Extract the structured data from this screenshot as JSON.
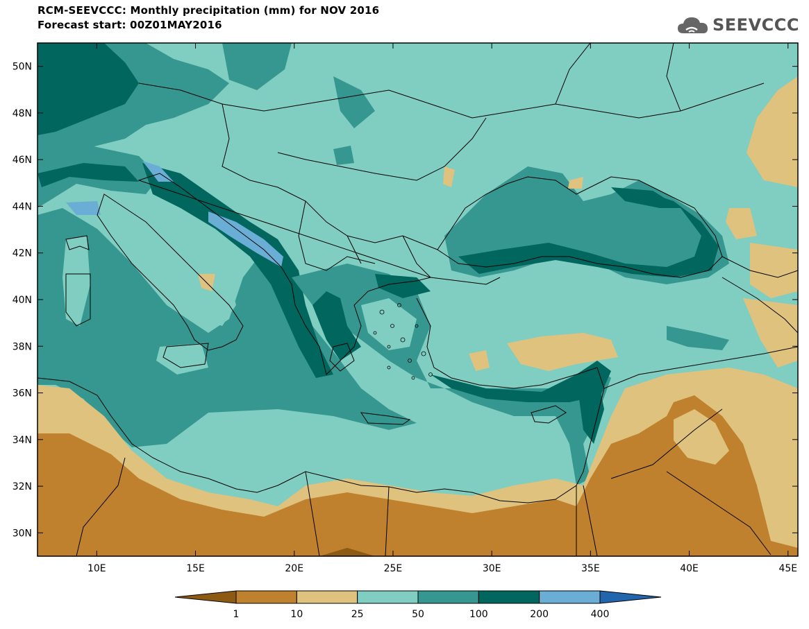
{
  "header": {
    "title_line1": "RCM-SEEVCCC: Monthly precipitation (mm) for NOV 2016",
    "title_line2": "Forecast start: 00Z01MAY2016"
  },
  "logo": {
    "text": "SEEVCCC",
    "icon": "cloud-logo-icon",
    "color": "#555555"
  },
  "map": {
    "lon_range": [
      7,
      45.5
    ],
    "lat_range": [
      29,
      51
    ],
    "lon_ticks": [
      "10E",
      "15E",
      "20E",
      "25E",
      "30E",
      "35E",
      "40E",
      "45E"
    ],
    "lon_values": [
      10,
      15,
      20,
      25,
      30,
      35,
      40,
      45
    ],
    "lat_ticks": [
      "30N",
      "32N",
      "34N",
      "36N",
      "38N",
      "40N",
      "42N",
      "44N",
      "46N",
      "48N",
      "50N"
    ],
    "lat_values": [
      30,
      32,
      34,
      36,
      38,
      40,
      42,
      44,
      46,
      48,
      50
    ],
    "boundaries_color": "#000000"
  },
  "colorbar": {
    "labels": [
      "1",
      "10",
      "25",
      "50",
      "100",
      "200",
      "400"
    ],
    "colors": [
      "#8c5a12",
      "#bf812d",
      "#dfc27d",
      "#80cdc1",
      "#35978f",
      "#01665e",
      "#6aaed6",
      "#2166ac"
    ]
  }
}
